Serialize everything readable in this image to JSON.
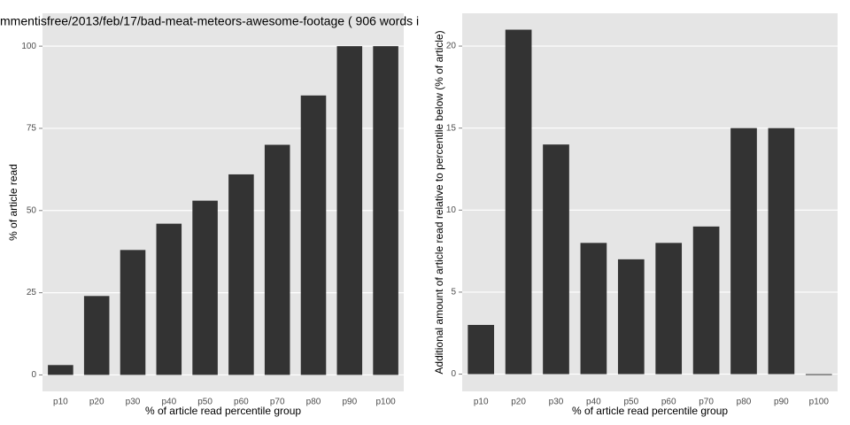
{
  "chart_data": [
    {
      "type": "bar",
      "title": "mmentisfree/2013/feb/17/bad-meat-meteors-awesome-footage ( 906 words i",
      "xlabel": "% of article read percentile group",
      "ylabel": "% of article read",
      "categories": [
        "p10",
        "p20",
        "p30",
        "p40",
        "p50",
        "p60",
        "p70",
        "p80",
        "p90",
        "p100"
      ],
      "values": [
        3,
        24,
        38,
        46,
        53,
        61,
        70,
        85,
        100,
        100
      ],
      "color": "#333333",
      "ylim": [
        -5,
        110
      ],
      "yticks": [
        0,
        25,
        50,
        75,
        100
      ],
      "grid": true
    },
    {
      "type": "bar",
      "xlabel": "% of article read percentile group",
      "ylabel": "Additional amount of article read relative to percentile below (% of article)",
      "categories": [
        "p10",
        "p20",
        "p30",
        "p40",
        "p50",
        "p60",
        "p70",
        "p80",
        "p90",
        "p100"
      ],
      "values": [
        3,
        21,
        14,
        8,
        7,
        8,
        9,
        15,
        15,
        0
      ],
      "color": "#333333",
      "ylim": [
        -1.05,
        22
      ],
      "yticks": [
        0,
        5,
        10,
        15,
        20
      ],
      "grid": true
    }
  ]
}
